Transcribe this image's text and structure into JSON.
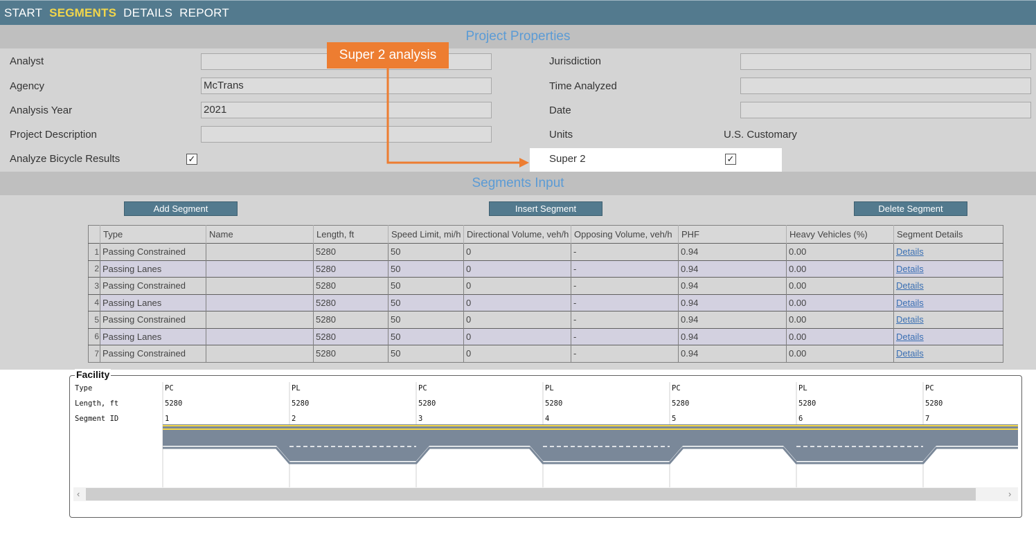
{
  "nav": {
    "tabs": [
      {
        "label": "START",
        "active": false
      },
      {
        "label": "SEGMENTS",
        "active": true
      },
      {
        "label": "DETAILS",
        "active": false
      },
      {
        "label": "REPORT",
        "active": false
      }
    ]
  },
  "project": {
    "header": "Project Properties",
    "analyst_label": "Analyst",
    "analyst_value": "",
    "agency_label": "Agency",
    "agency_value": "McTrans",
    "year_label": "Analysis Year",
    "year_value": "2021",
    "description_label": "Project Description",
    "description_value": "",
    "bicycle_label": "Analyze Bicycle Results",
    "bicycle_checked": true,
    "jurisdiction_label": "Jurisdiction",
    "jurisdiction_value": "",
    "time_label": "Time Analyzed",
    "time_value": "",
    "date_label": "Date",
    "date_value": "",
    "units_label": "Units",
    "units_value": "U.S. Customary",
    "super2_label": "Super 2",
    "super2_checked": true
  },
  "callout": {
    "text": "Super 2 analysis",
    "color": "#ed7d31"
  },
  "segments": {
    "header": "Segments Input",
    "add_button": "Add Segment",
    "insert_button": "Insert Segment",
    "delete_button": "Delete Segment",
    "columns": [
      "Type",
      "Name",
      "Length, ft",
      "Speed Limit, mi/h",
      "Directional Volume, veh/h",
      "Opposing Volume, veh/h",
      "PHF",
      "Heavy Vehicles (%)",
      "Segment Details"
    ],
    "rows": [
      {
        "num": "1",
        "type": "Passing Constrained",
        "name": "",
        "length": "5280",
        "speed": "50",
        "dir_vol": "0",
        "opp_vol": "-",
        "phf": "0.94",
        "hv": "0.00",
        "details": "Details"
      },
      {
        "num": "2",
        "type": "Passing Lanes",
        "name": "",
        "length": "5280",
        "speed": "50",
        "dir_vol": "0",
        "opp_vol": "-",
        "phf": "0.94",
        "hv": "0.00",
        "details": "Details"
      },
      {
        "num": "3",
        "type": "Passing Constrained",
        "name": "",
        "length": "5280",
        "speed": "50",
        "dir_vol": "0",
        "opp_vol": "-",
        "phf": "0.94",
        "hv": "0.00",
        "details": "Details"
      },
      {
        "num": "4",
        "type": "Passing Lanes",
        "name": "",
        "length": "5280",
        "speed": "50",
        "dir_vol": "0",
        "opp_vol": "-",
        "phf": "0.94",
        "hv": "0.00",
        "details": "Details"
      },
      {
        "num": "5",
        "type": "Passing Constrained",
        "name": "",
        "length": "5280",
        "speed": "50",
        "dir_vol": "0",
        "opp_vol": "-",
        "phf": "0.94",
        "hv": "0.00",
        "details": "Details"
      },
      {
        "num": "6",
        "type": "Passing Lanes",
        "name": "",
        "length": "5280",
        "speed": "50",
        "dir_vol": "0",
        "opp_vol": "-",
        "phf": "0.94",
        "hv": "0.00",
        "details": "Details"
      },
      {
        "num": "7",
        "type": "Passing Constrained",
        "name": "",
        "length": "5280",
        "speed": "50",
        "dir_vol": "0",
        "opp_vol": "-",
        "phf": "0.94",
        "hv": "0.00",
        "details": "Details"
      }
    ]
  },
  "facility": {
    "title": "Facility",
    "type_label": "Type",
    "length_label": "Length, ft",
    "segid_label": "Segment ID",
    "segments": [
      {
        "type": "PC",
        "length": "5280",
        "id": "1"
      },
      {
        "type": "PL",
        "length": "5280",
        "id": "2"
      },
      {
        "type": "PC",
        "length": "5280",
        "id": "3"
      },
      {
        "type": "PL",
        "length": "5280",
        "id": "4"
      },
      {
        "type": "PC",
        "length": "5280",
        "id": "5"
      },
      {
        "type": "PL",
        "length": "5280",
        "id": "6"
      },
      {
        "type": "PC",
        "length": "5280",
        "id": "7"
      }
    ],
    "scroll_left": "‹",
    "scroll_right": "›"
  },
  "colors": {
    "nav_bg": "#537a8e",
    "active_tab": "#f2d64b",
    "road": "#7a8899",
    "center_line": "#f2d64b"
  }
}
